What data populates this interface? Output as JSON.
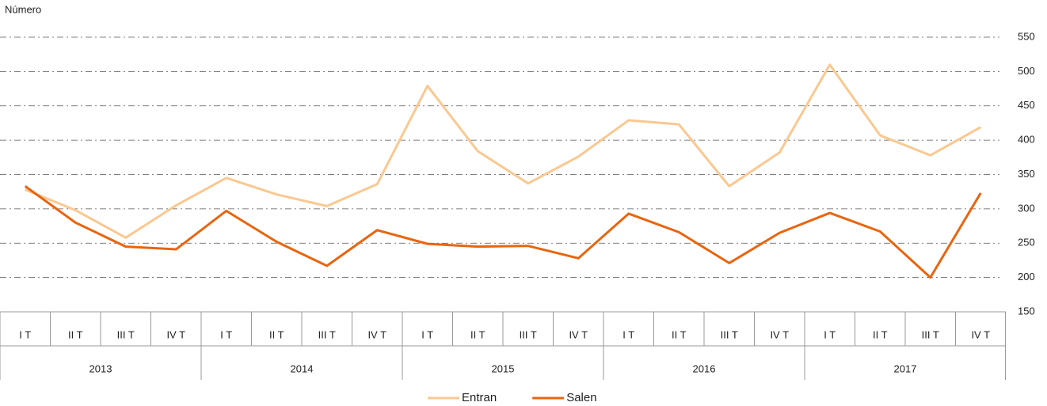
{
  "chart_data": {
    "type": "line",
    "y_axis_label": "Número",
    "categories": [
      "I T",
      "II T",
      "III T",
      "IV T",
      "I T",
      "II T",
      "III T",
      "IV T",
      "I T",
      "II T",
      "III T",
      "IV T",
      "I T",
      "II T",
      "III T",
      "IV T",
      "I T",
      "II T",
      "III T",
      "IV T"
    ],
    "years": [
      "2013",
      "2014",
      "2015",
      "2016",
      "2017"
    ],
    "series": [
      {
        "name": "Entran",
        "color": "#fac890",
        "values": [
          328,
          298,
          258,
          305,
          345,
          321,
          304,
          336,
          479,
          384,
          337,
          376,
          429,
          423,
          333,
          382,
          510,
          407,
          378,
          419
        ]
      },
      {
        "name": "Salen",
        "color": "#e8650f",
        "values": [
          333,
          280,
          245,
          241,
          297,
          252,
          217,
          269,
          249,
          245,
          246,
          228,
          293,
          266,
          221,
          265,
          294,
          267,
          200,
          323
        ]
      }
    ],
    "ylim": [
      150,
      550
    ],
    "yticks": [
      150,
      200,
      250,
      300,
      350,
      400,
      450,
      500,
      550
    ],
    "grid": true,
    "legend": "bottom"
  }
}
